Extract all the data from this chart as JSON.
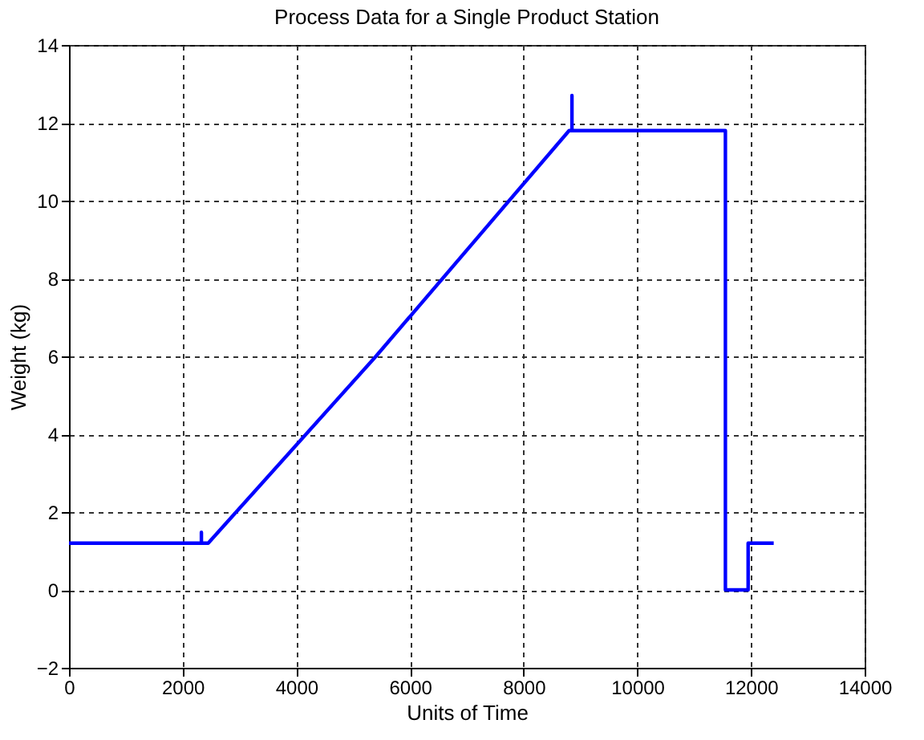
{
  "chart_data": {
    "type": "line",
    "title": "Process Data for a Single Product Station",
    "xlabel": "Units of Time",
    "ylabel": "Weight (kg)",
    "x": [
      0,
      2330,
      2330,
      2330,
      2450,
      5400,
      8800,
      8850,
      8850,
      8850,
      11550,
      11550,
      11950,
      11950,
      12400
    ],
    "series": [
      {
        "color": "#0000ff",
        "values": [
          1.2,
          1.2,
          1.48,
          1.2,
          1.2,
          6.0,
          11.8,
          11.8,
          12.7,
          11.8,
          11.8,
          0,
          0,
          1.2,
          1.2
        ]
      }
    ],
    "xlim": [
      0,
      14000
    ],
    "xticks": [
      0,
      2000,
      4000,
      6000,
      8000,
      10000,
      12000,
      14000
    ],
    "ylim": [
      -2,
      14
    ],
    "yticks": [
      -2,
      0,
      2,
      4,
      6,
      8,
      10,
      12,
      14
    ],
    "grid": true,
    "marker": "none",
    "line_style": "solid"
  }
}
